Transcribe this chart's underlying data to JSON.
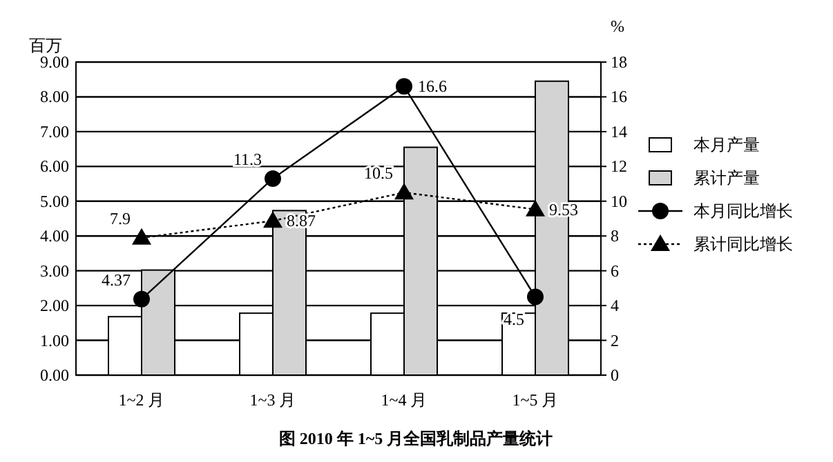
{
  "chart_data": {
    "type": "bar",
    "title": "图 2010 年 1~5 月全国乳制品产量统计",
    "ylabel": "百万",
    "y2label": "%",
    "categories": [
      "1~2 月",
      "1~3 月",
      "1~4 月",
      "1~5 月"
    ],
    "series": [
      {
        "name": "本月产量",
        "color": "#ffffff",
        "values": [
          1.68,
          1.78,
          1.78,
          1.78
        ]
      },
      {
        "name": "累计产量",
        "color": "#d3d3d3",
        "values": [
          3.02,
          4.73,
          6.55,
          8.45
        ]
      },
      {
        "name": "本月同比增长",
        "type": "line",
        "axis": "y2",
        "color": "#000000",
        "marker": "circle",
        "line_style": "solid",
        "values": [
          4.37,
          11.3,
          16.6,
          4.5
        ],
        "value_labels": [
          "4.37",
          "11.3",
          "16.6",
          "4.5"
        ]
      },
      {
        "name": "累计同比增长",
        "type": "line",
        "axis": "y2",
        "color": "#000000",
        "marker": "triangle",
        "line_style": "dotted",
        "values": [
          7.9,
          8.87,
          10.5,
          9.53
        ],
        "value_labels": [
          "7.9",
          "8.87",
          "10.5",
          "9.53"
        ]
      }
    ],
    "ylim": [
      0,
      9
    ],
    "yticks": [
      {
        "value": 0,
        "label": "0.00"
      },
      {
        "value": 1,
        "label": "1.00"
      },
      {
        "value": 2,
        "label": "2.00"
      },
      {
        "value": 3,
        "label": "3.00"
      },
      {
        "value": 4,
        "label": "4.00"
      },
      {
        "value": 5,
        "label": "5.00"
      },
      {
        "value": 6,
        "label": "6.00"
      },
      {
        "value": 7,
        "label": "7.00"
      },
      {
        "value": 8,
        "label": "8.00"
      },
      {
        "value": 9,
        "label": "9.00"
      }
    ],
    "y2lim": [
      0,
      18
    ],
    "y2ticks": [
      0,
      2,
      4,
      6,
      8,
      10,
      12,
      14,
      16,
      18
    ],
    "grid": "y",
    "legend": "right"
  }
}
